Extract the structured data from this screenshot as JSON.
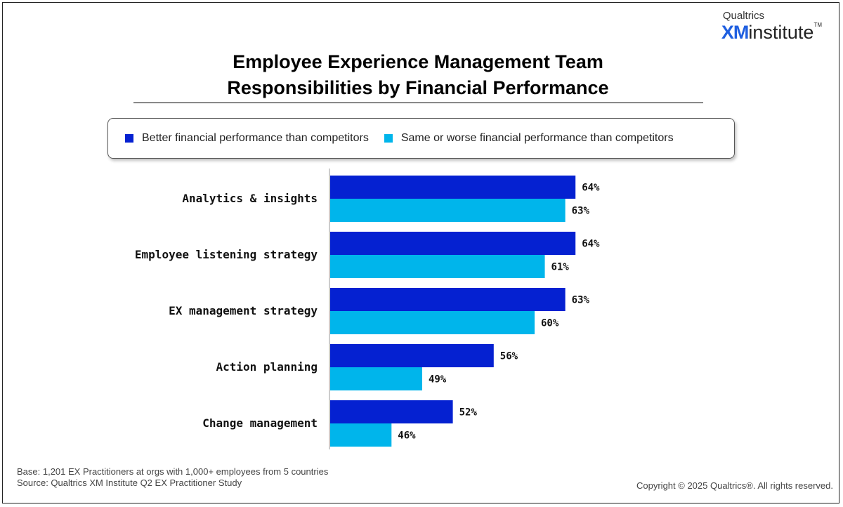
{
  "logo": {
    "company": "Qualtrics",
    "xm": "XM",
    "institute": "institute",
    "tm": "TM"
  },
  "chart_data": {
    "type": "bar",
    "orientation": "horizontal",
    "title": "Employee Experience Management Team Responsibilities by Financial Performance",
    "title_lines": [
      "Employee Experience Management Team",
      "Responsibilities by Financial Performance"
    ],
    "categories": [
      "Analytics & insights",
      "Employee listening strategy",
      "EX management strategy",
      "Action planning",
      "Change management"
    ],
    "series": [
      {
        "name": "Better financial performance than competitors",
        "color": "#0521D1",
        "values": [
          64,
          64,
          63,
          56,
          52
        ]
      },
      {
        "name": "Same or worse financial performance than competitors",
        "color": "#00B5EB",
        "values": [
          63,
          61,
          60,
          49,
          46
        ]
      }
    ],
    "value_suffix": "%",
    "xlim": [
      40,
      70
    ],
    "grid": false,
    "legend_position": "top"
  },
  "footer": {
    "base": "Base: 1,201 EX Practitioners at orgs with 1,000+ employees from 5 countries",
    "source": "Source: Qualtrics XM Institute Q2 EX Practitioner Study",
    "copyright": "Copyright © 2025 Qualtrics®. All rights reserved."
  }
}
